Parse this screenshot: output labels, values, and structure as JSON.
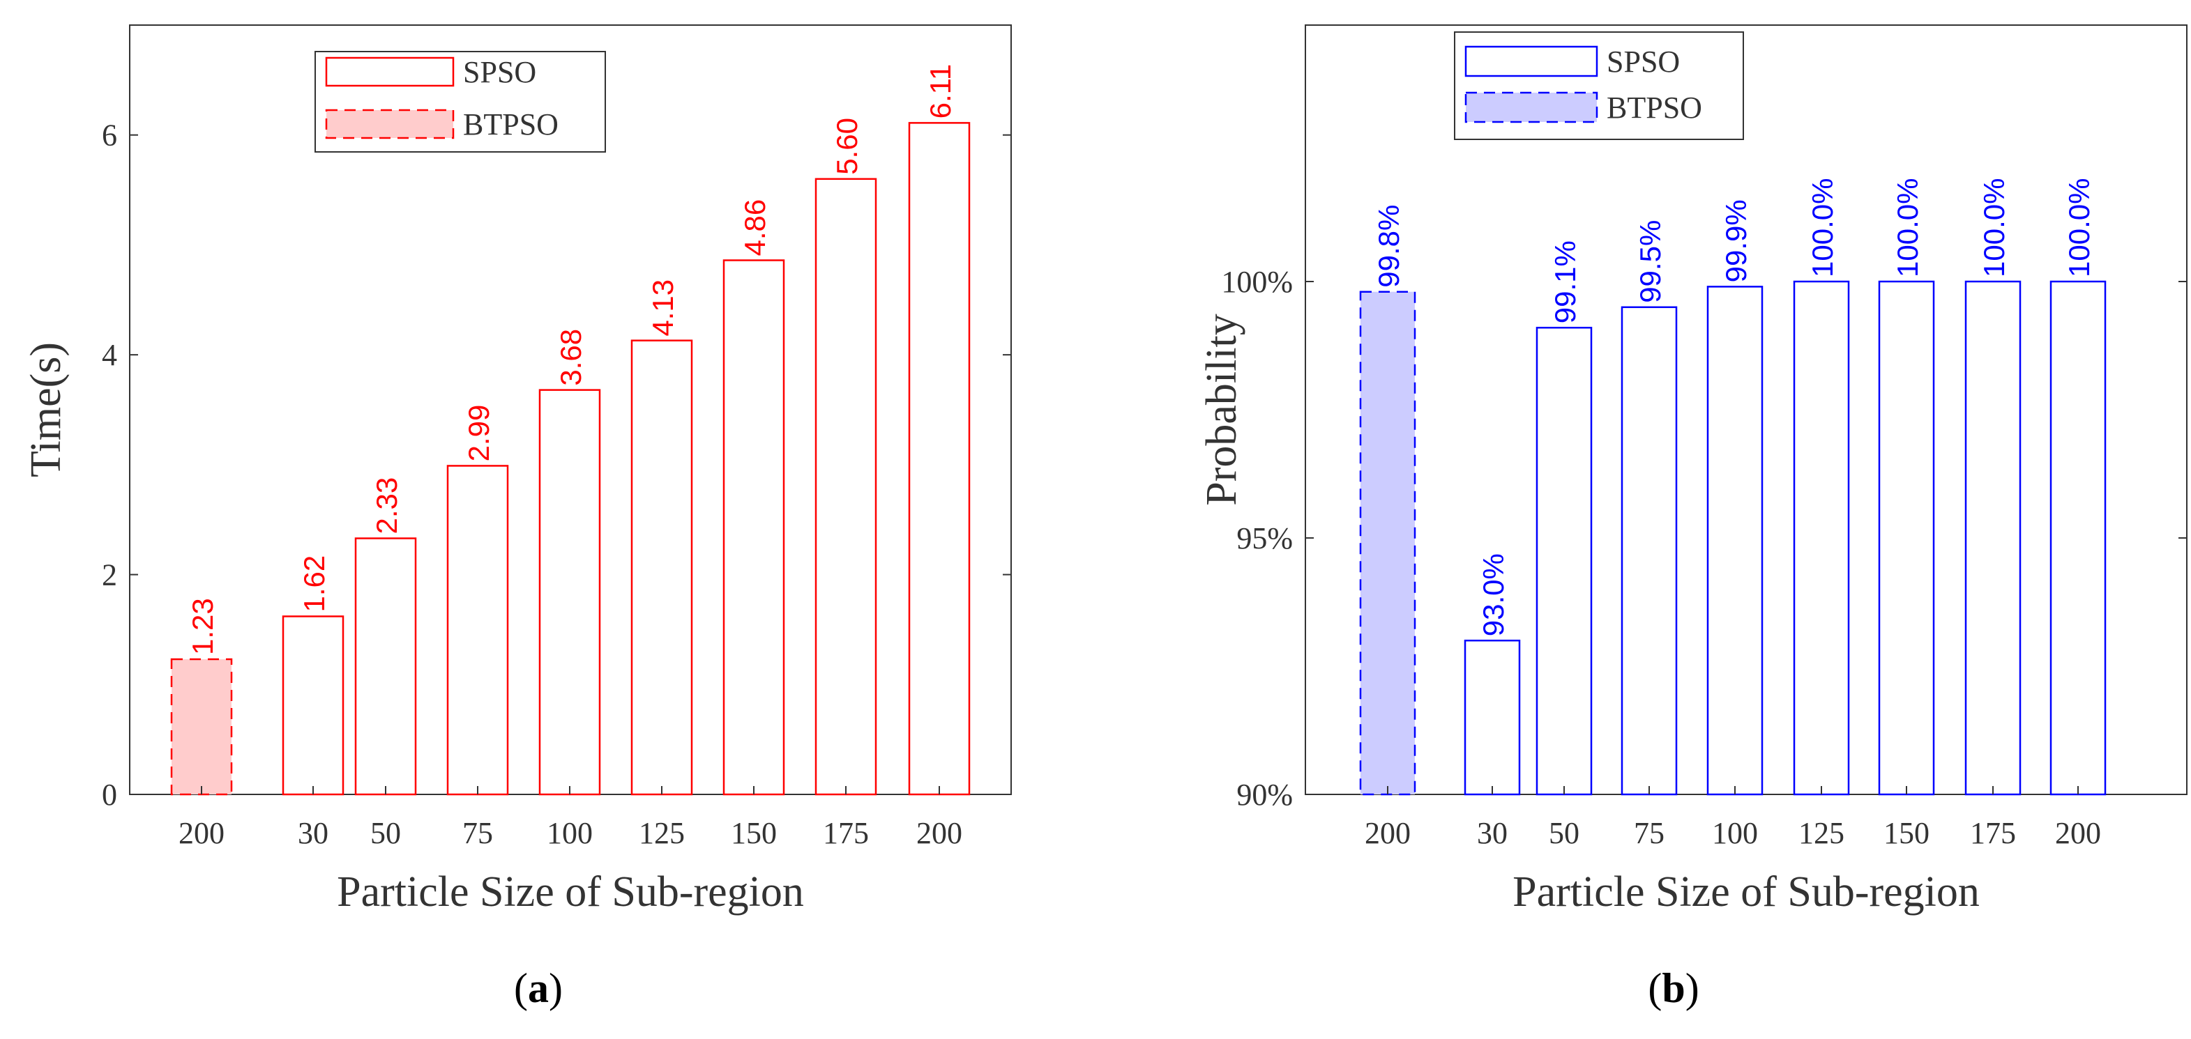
{
  "chart_data": [
    {
      "type": "bar",
      "id": "a",
      "caption": "a",
      "categories": [
        "200",
        "30",
        "50",
        "75",
        "100",
        "125",
        "150",
        "175",
        "200"
      ],
      "values": [
        1.23,
        1.62,
        2.33,
        2.99,
        3.68,
        4.13,
        4.86,
        5.6,
        6.11
      ],
      "data_labels": [
        "1.23",
        "1.62",
        "2.33",
        "2.99",
        "3.68",
        "4.13",
        "4.86",
        "5.60",
        "6.11"
      ],
      "series_of_bar": [
        "BTPSO",
        "SPSO",
        "SPSO",
        "SPSO",
        "SPSO",
        "SPSO",
        "SPSO",
        "SPSO",
        "SPSO"
      ],
      "xlabel": "Particle Size of Sub-region",
      "ylabel": "Time(s)",
      "ylim": [
        0,
        7
      ],
      "yticks": [
        0,
        2,
        4,
        6
      ],
      "ytick_labels": [
        "0",
        "2",
        "4",
        "6"
      ],
      "legend": [
        "SPSO",
        "BTPSO"
      ],
      "legend_position": "top-center",
      "color": "#ff0000",
      "fill_color": "#ffcccc"
    },
    {
      "type": "bar",
      "id": "b",
      "caption": "b",
      "categories": [
        "200",
        "30",
        "50",
        "75",
        "100",
        "125",
        "150",
        "175",
        "200"
      ],
      "values": [
        99.8,
        93.0,
        99.1,
        99.5,
        99.9,
        100.0,
        100.0,
        100.0,
        100.0
      ],
      "data_labels": [
        "99.8%",
        "93.0%",
        "99.1%",
        "99.5%",
        "99.9%",
        "100.0%",
        "100.0%",
        "100.0%",
        "100.0%"
      ],
      "series_of_bar": [
        "BTPSO",
        "SPSO",
        "SPSO",
        "SPSO",
        "SPSO",
        "SPSO",
        "SPSO",
        "SPSO",
        "SPSO"
      ],
      "xlabel": "Particle Size of Sub-region",
      "ylabel": "Probability",
      "ylim": [
        90,
        105
      ],
      "yticks": [
        90,
        95,
        100
      ],
      "ytick_labels": [
        "90%",
        "95%",
        "100%"
      ],
      "legend": [
        "SPSO",
        "BTPSO"
      ],
      "legend_position": "top-left",
      "color": "#0000ff",
      "fill_color": "#ccccff"
    }
  ]
}
